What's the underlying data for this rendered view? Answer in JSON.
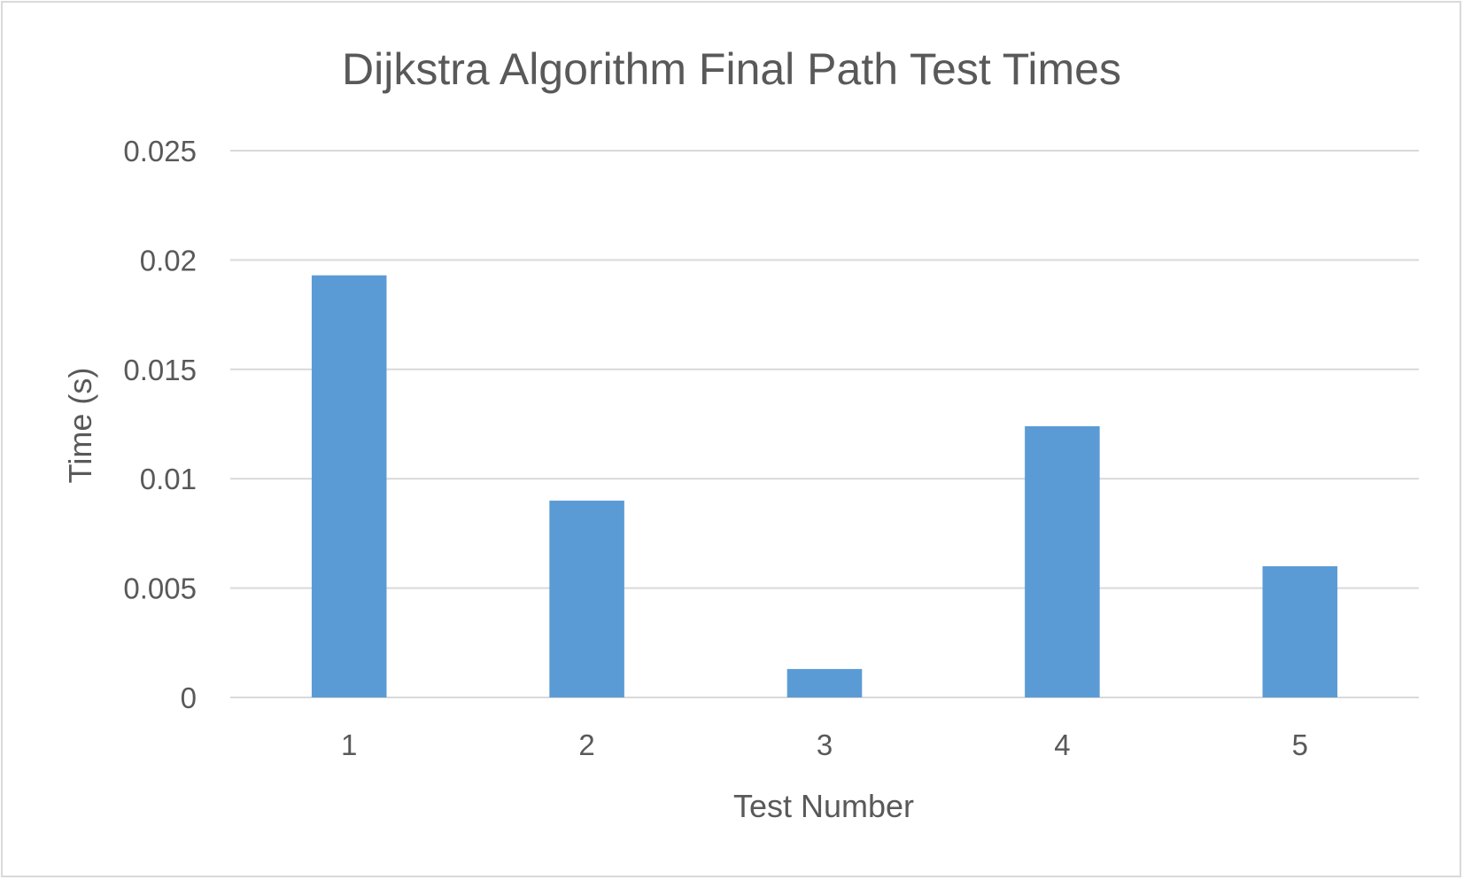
{
  "chart_data": {
    "type": "bar",
    "title": "Dijkstra Algorithm Final Path Test Times",
    "xlabel": "Test Number",
    "ylabel": "Time (s)",
    "categories": [
      "1",
      "2",
      "3",
      "4",
      "5"
    ],
    "values": [
      0.0193,
      0.009,
      0.0013,
      0.0124,
      0.006
    ],
    "ylim": [
      0,
      0.025
    ],
    "yticks": [
      0,
      0.005,
      0.01,
      0.015,
      0.02,
      0.025
    ],
    "ytick_labels": [
      "0",
      "0.005",
      "0.01",
      "0.015",
      "0.02",
      "0.025"
    ],
    "grid": true,
    "legend": "none",
    "colors": {
      "bar": "#5b9bd5",
      "grid": "#d9d9d9",
      "text": "#595959",
      "border": "#d9d9d9"
    }
  }
}
